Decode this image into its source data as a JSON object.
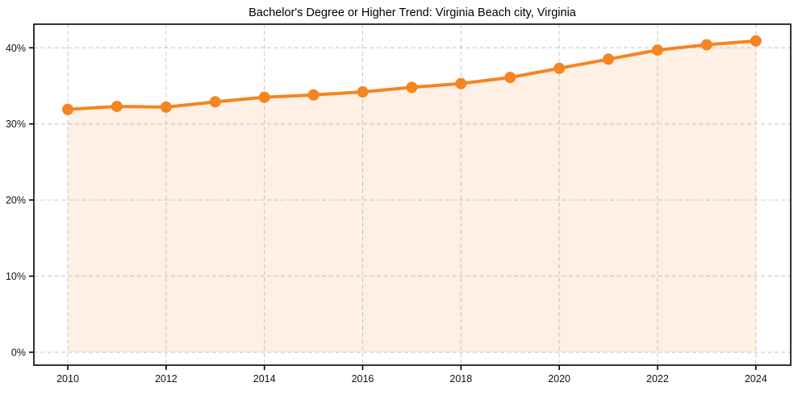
{
  "chart_data": {
    "type": "line",
    "title": "Bachelor's Degree or Higher Trend: Virginia Beach city, Virginia",
    "x": [
      2010,
      2011,
      2012,
      2013,
      2014,
      2015,
      2016,
      2017,
      2018,
      2019,
      2020,
      2021,
      2022,
      2023,
      2024
    ],
    "values": [
      31.9,
      32.3,
      32.2,
      32.9,
      33.5,
      33.8,
      34.2,
      34.8,
      35.3,
      36.1,
      37.3,
      38.5,
      39.7,
      40.4,
      40.9
    ],
    "xlabel": "",
    "ylabel": "",
    "xlim": [
      2009.31,
      2024.71
    ],
    "ylim": [
      -1.7,
      43.1
    ],
    "x_ticks": [
      2010,
      2012,
      2014,
      2016,
      2018,
      2020,
      2022,
      2024
    ],
    "x_tick_labels": [
      "2010",
      "2012",
      "2014",
      "2016",
      "2018",
      "2020",
      "2022",
      "2024"
    ],
    "y_ticks": [
      0,
      10,
      20,
      30,
      40
    ],
    "y_tick_labels": [
      "0%",
      "10%",
      "20%",
      "30%",
      "40%"
    ],
    "grid": true,
    "grid_style": "dashed",
    "legend": false,
    "marker": "circle",
    "marker_radius": 7,
    "line_width": 4,
    "area_baseline": 0,
    "colors": {
      "line": "#f48520",
      "fill_opacity": 0.12,
      "grid": "#c6c6c6",
      "spine": "#000000",
      "tick_label": "#111111",
      "title": "#000000",
      "background": "#ffffff"
    }
  }
}
